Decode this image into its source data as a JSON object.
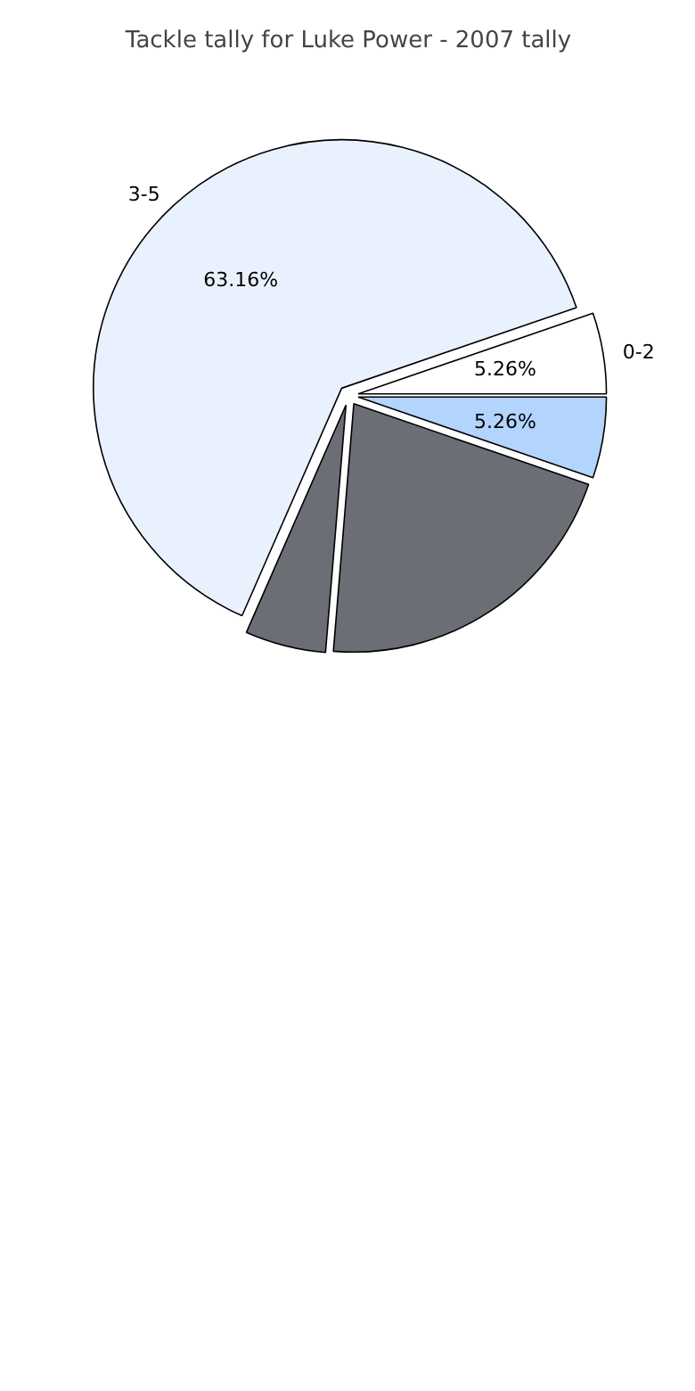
{
  "chart_data": {
    "type": "pie",
    "title": "Tackle tally for Luke Power - 2007 tally",
    "categories": [
      "0-2",
      "3-5",
      null,
      null,
      null
    ],
    "values": [
      5.26,
      63.16,
      5.26,
      21.05,
      5.26
    ],
    "colors": [
      "#ffffff",
      "#eaf1fe",
      "#6b6e75",
      "#6b6e75",
      "#b3d4fc"
    ],
    "value_labels": [
      "5.26%",
      "63.16%",
      null,
      null,
      "5.26%"
    ]
  }
}
